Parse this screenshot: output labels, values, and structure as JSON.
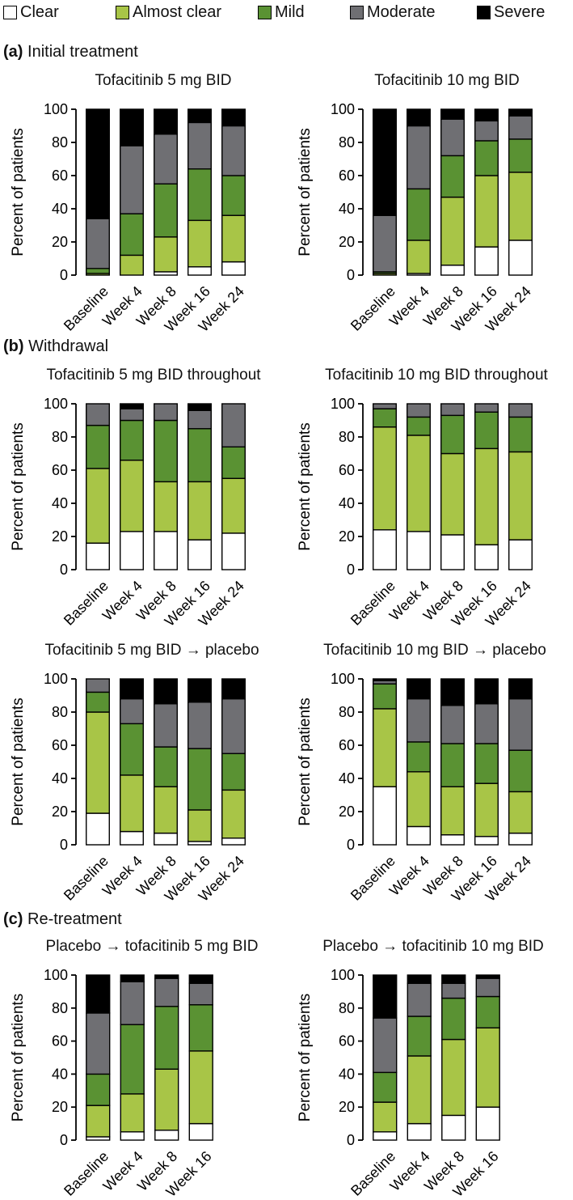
{
  "legend": [
    {
      "label": "Clear",
      "color": "#ffffff"
    },
    {
      "label": "Almost clear",
      "color": "#a8c547"
    },
    {
      "label": "Mild",
      "color": "#5a9233"
    },
    {
      "label": "Moderate",
      "color": "#6f6f73"
    },
    {
      "label": "Severe",
      "color": "#000000"
    }
  ],
  "sections": [
    {
      "letter": "(a)",
      "name": "Initial treatment"
    },
    {
      "letter": "(b)",
      "name": "Withdrawal"
    },
    {
      "letter": "(c)",
      "name": "Re-treatment"
    }
  ],
  "chart_data": [
    {
      "type": "bar",
      "stacked": true,
      "title": "Tofacitinib 5 mg BID",
      "ylabel": "Percent of patients",
      "ylim": [
        0,
        100
      ],
      "yticks": [
        0,
        20,
        40,
        60,
        80,
        100
      ],
      "categories": [
        "Baseline",
        "Week 4",
        "Week 8",
        "Week 16",
        "Week 24"
      ],
      "series": [
        {
          "name": "Clear",
          "values": [
            0,
            0,
            2,
            5,
            8
          ]
        },
        {
          "name": "Almost clear",
          "values": [
            1,
            12,
            21,
            28,
            28
          ]
        },
        {
          "name": "Mild",
          "values": [
            3,
            25,
            32,
            31,
            24
          ]
        },
        {
          "name": "Moderate",
          "values": [
            30,
            41,
            30,
            28,
            30
          ]
        },
        {
          "name": "Severe",
          "values": [
            66,
            22,
            15,
            8,
            10
          ]
        }
      ]
    },
    {
      "type": "bar",
      "stacked": true,
      "title": "Tofacitinib 10 mg BID",
      "ylabel": "Percent of patients",
      "ylim": [
        0,
        100
      ],
      "yticks": [
        0,
        20,
        40,
        60,
        80,
        100
      ],
      "categories": [
        "Baseline",
        "Week 4",
        "Week 8",
        "Week 16",
        "Week 24"
      ],
      "series": [
        {
          "name": "Clear",
          "values": [
            0,
            1,
            6,
            17,
            21
          ]
        },
        {
          "name": "Almost clear",
          "values": [
            1,
            20,
            41,
            43,
            41
          ]
        },
        {
          "name": "Mild",
          "values": [
            1,
            31,
            25,
            21,
            20
          ]
        },
        {
          "name": "Moderate",
          "values": [
            34,
            38,
            22,
            12,
            14
          ]
        },
        {
          "name": "Severe",
          "values": [
            64,
            10,
            6,
            7,
            4
          ]
        }
      ]
    },
    {
      "type": "bar",
      "stacked": true,
      "title": "Tofacitinib 5 mg BID throughout",
      "ylabel": "Percent of patients",
      "ylim": [
        0,
        100
      ],
      "yticks": [
        0,
        20,
        40,
        60,
        80,
        100
      ],
      "categories": [
        "Baseline",
        "Week 4",
        "Week 8",
        "Week 16",
        "Week 24"
      ],
      "series": [
        {
          "name": "Clear",
          "values": [
            16,
            23,
            23,
            18,
            22
          ]
        },
        {
          "name": "Almost clear",
          "values": [
            45,
            43,
            30,
            35,
            33
          ]
        },
        {
          "name": "Mild",
          "values": [
            26,
            24,
            37,
            32,
            19
          ]
        },
        {
          "name": "Moderate",
          "values": [
            13,
            7,
            10,
            11,
            26
          ]
        },
        {
          "name": "Severe",
          "values": [
            0,
            3,
            0,
            4,
            0
          ]
        }
      ]
    },
    {
      "type": "bar",
      "stacked": true,
      "title": "Tofacitinib 10 mg BID throughout",
      "ylabel": "Percent of patients",
      "ylim": [
        0,
        100
      ],
      "yticks": [
        0,
        20,
        40,
        60,
        80,
        100
      ],
      "categories": [
        "Baseline",
        "Week 4",
        "Week 8",
        "Week 16",
        "Week 24"
      ],
      "series": [
        {
          "name": "Clear",
          "values": [
            24,
            23,
            21,
            15,
            18
          ]
        },
        {
          "name": "Almost clear",
          "values": [
            62,
            58,
            49,
            58,
            53
          ]
        },
        {
          "name": "Mild",
          "values": [
            11,
            11,
            23,
            22,
            21
          ]
        },
        {
          "name": "Moderate",
          "values": [
            3,
            8,
            7,
            5,
            8
          ]
        },
        {
          "name": "Severe",
          "values": [
            0,
            0,
            0,
            0,
            0
          ]
        }
      ]
    },
    {
      "type": "bar",
      "stacked": true,
      "title": "Tofacitinib 5 mg BID → placebo",
      "ylabel": "Percent of patients",
      "ylim": [
        0,
        100
      ],
      "yticks": [
        0,
        20,
        40,
        60,
        80,
        100
      ],
      "categories": [
        "Baseline",
        "Week 4",
        "Week 8",
        "Week 16",
        "Week 24"
      ],
      "series": [
        {
          "name": "Clear",
          "values": [
            19,
            8,
            7,
            2,
            4
          ]
        },
        {
          "name": "Almost clear",
          "values": [
            61,
            34,
            28,
            19,
            29
          ]
        },
        {
          "name": "Mild",
          "values": [
            12,
            31,
            24,
            37,
            22
          ]
        },
        {
          "name": "Moderate",
          "values": [
            8,
            15,
            26,
            28,
            33
          ]
        },
        {
          "name": "Severe",
          "values": [
            0,
            12,
            15,
            14,
            12
          ]
        }
      ]
    },
    {
      "type": "bar",
      "stacked": true,
      "title": "Tofacitinib 10 mg BID → placebo",
      "ylabel": "Percent of patients",
      "ylim": [
        0,
        100
      ],
      "yticks": [
        0,
        20,
        40,
        60,
        80,
        100
      ],
      "categories": [
        "Baseline",
        "Week 4",
        "Week 8",
        "Week 16",
        "Week 24"
      ],
      "series": [
        {
          "name": "Clear",
          "values": [
            35,
            11,
            6,
            5,
            7
          ]
        },
        {
          "name": "Almost clear",
          "values": [
            47,
            33,
            29,
            32,
            25
          ]
        },
        {
          "name": "Mild",
          "values": [
            15,
            18,
            26,
            24,
            25
          ]
        },
        {
          "name": "Moderate",
          "values": [
            2,
            26,
            23,
            24,
            31
          ]
        },
        {
          "name": "Severe",
          "values": [
            1,
            12,
            16,
            15,
            12
          ]
        }
      ]
    },
    {
      "type": "bar",
      "stacked": true,
      "title": "Placebo → tofacitinib 5 mg BID",
      "ylabel": "Percent of patients",
      "ylim": [
        0,
        100
      ],
      "yticks": [
        0,
        20,
        40,
        60,
        80,
        100
      ],
      "categories": [
        "Baseline",
        "Week 4",
        "Week 8",
        "Week 16"
      ],
      "series": [
        {
          "name": "Clear",
          "values": [
            2,
            5,
            6,
            10
          ]
        },
        {
          "name": "Almost clear",
          "values": [
            19,
            23,
            37,
            44
          ]
        },
        {
          "name": "Mild",
          "values": [
            19,
            42,
            38,
            28
          ]
        },
        {
          "name": "Moderate",
          "values": [
            37,
            26,
            17,
            13
          ]
        },
        {
          "name": "Severe",
          "values": [
            23,
            4,
            2,
            5
          ]
        }
      ]
    },
    {
      "type": "bar",
      "stacked": true,
      "title": "Placebo → tofacitinib 10 mg BID",
      "ylabel": "Percent of patients",
      "ylim": [
        0,
        100
      ],
      "yticks": [
        0,
        20,
        40,
        60,
        80,
        100
      ],
      "categories": [
        "Baseline",
        "Week 4",
        "Week 8",
        "Week 16"
      ],
      "series": [
        {
          "name": "Clear",
          "values": [
            5,
            10,
            15,
            20
          ]
        },
        {
          "name": "Almost clear",
          "values": [
            18,
            41,
            46,
            48
          ]
        },
        {
          "name": "Mild",
          "values": [
            18,
            24,
            25,
            19
          ]
        },
        {
          "name": "Moderate",
          "values": [
            33,
            20,
            9,
            11
          ]
        },
        {
          "name": "Severe",
          "values": [
            26,
            5,
            5,
            2
          ]
        }
      ]
    }
  ]
}
